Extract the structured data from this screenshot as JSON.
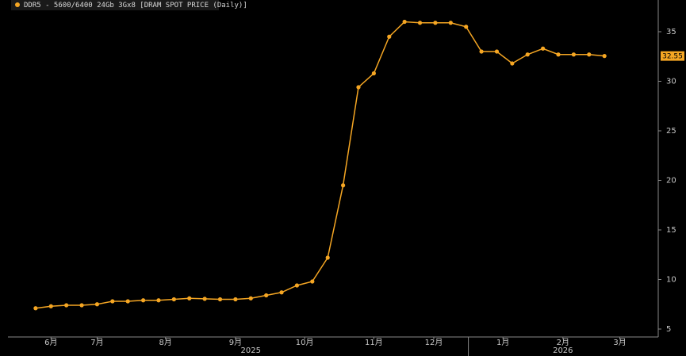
{
  "chart_data": {
    "type": "line",
    "legend": "DDR5 - 5600/6400 24Gb 3Gx8 [DRAM SPOT PRICE (Daily)]",
    "last_value_label": "32.55",
    "x": [
      0,
      1,
      2,
      3,
      4,
      5,
      6,
      7,
      8,
      9,
      10,
      11,
      12,
      13,
      14,
      15,
      16,
      17,
      18,
      19,
      20,
      21,
      22,
      23,
      24,
      25,
      26,
      27,
      28,
      29,
      30,
      31,
      32,
      33,
      34,
      35,
      36,
      37
    ],
    "series": [
      {
        "name": "DDR5 - 5600/6400 24Gb 3Gx8 [DRAM SPOT PRICE (Daily)]",
        "color": "#f5a623",
        "values": [
          7.1,
          7.3,
          7.4,
          7.4,
          7.5,
          7.8,
          7.8,
          7.9,
          7.9,
          8.0,
          8.1,
          8.05,
          8.0,
          8.0,
          8.1,
          8.4,
          8.7,
          9.4,
          9.8,
          12.2,
          19.5,
          29.4,
          30.8,
          34.5,
          36.0,
          35.9,
          35.9,
          35.9,
          35.5,
          33.0,
          33.0,
          31.8,
          32.7,
          33.3,
          32.7,
          32.7,
          32.7,
          32.55
        ]
      }
    ],
    "xlim": [
      -1.8,
      40.5
    ],
    "xticks": [
      {
        "value": 1.0,
        "label": "6月"
      },
      {
        "value": 4.0,
        "label": "7月"
      },
      {
        "value": 8.45,
        "label": "8月"
      },
      {
        "value": 13.0,
        "label": "9月"
      },
      {
        "value": 17.5,
        "label": "10月"
      },
      {
        "value": 22.0,
        "label": "11月"
      },
      {
        "value": 25.9,
        "label": "12月"
      },
      {
        "value": 30.4,
        "label": "1月"
      },
      {
        "value": 34.3,
        "label": "2月"
      },
      {
        "value": 38.0,
        "label": "3月"
      }
    ],
    "year_labels": [
      {
        "value": 14.0,
        "label": "2025"
      },
      {
        "value": 34.3,
        "label": "2026"
      }
    ],
    "ylim": [
      4.2,
      38.2
    ],
    "yticks": [
      5,
      10,
      15,
      20,
      25,
      30,
      35
    ]
  }
}
